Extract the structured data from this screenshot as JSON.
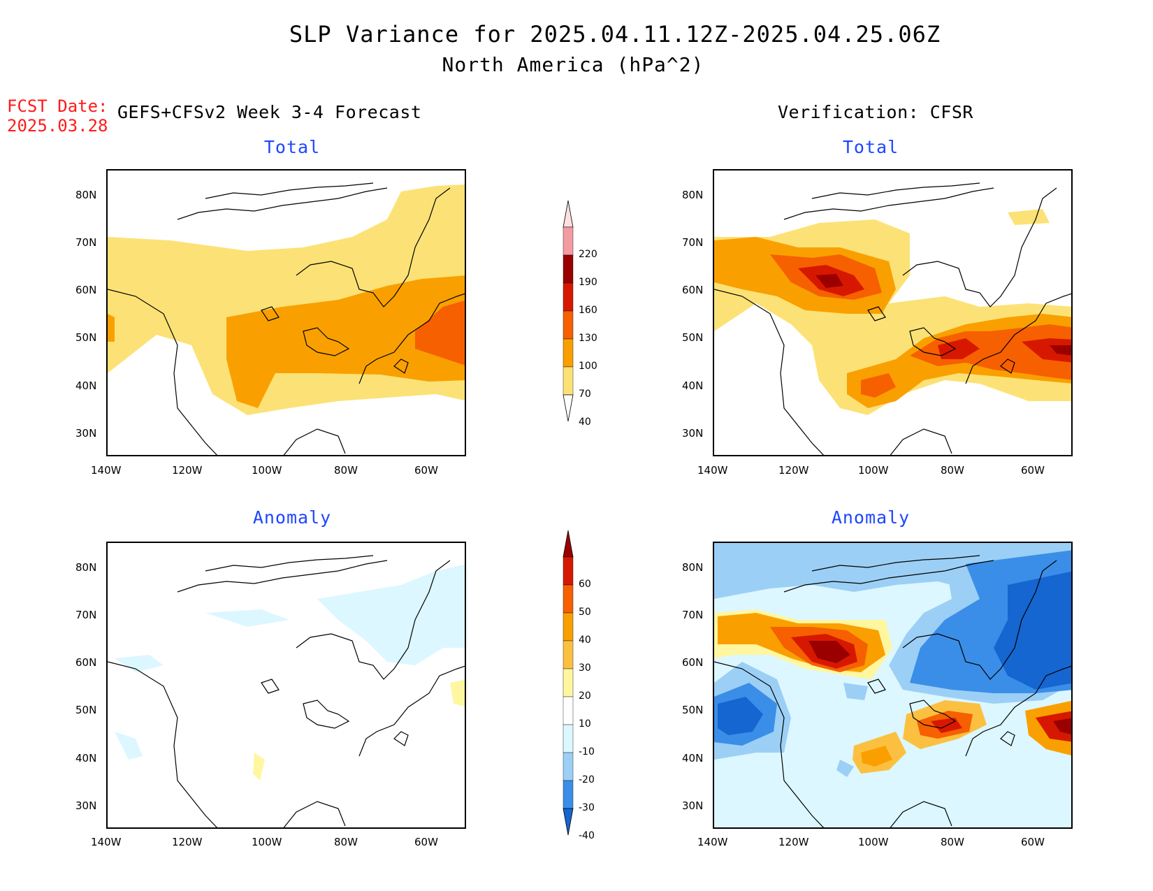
{
  "header": {
    "title": "SLP Variance for 2025.04.11.12Z-2025.04.25.06Z",
    "subtitle": "North America (hPa^2)",
    "fcst_date_label": "FCST Date:",
    "fcst_date_value": "2025.03.28",
    "left_column_title": "GEFS+CFSv2 Week 3-4 Forecast",
    "right_column_title": "Verification: CFSR"
  },
  "panels": {
    "forecast_total": {
      "title": "Total"
    },
    "verif_total": {
      "title": "Total"
    },
    "forecast_anomaly": {
      "title": "Anomaly"
    },
    "verif_anomaly": {
      "title": "Anomaly"
    }
  },
  "axes": {
    "lat_labels": [
      "80N",
      "70N",
      "60N",
      "50N",
      "40N",
      "30N"
    ],
    "lon_labels": [
      "140W",
      "120W",
      "100W",
      "80W",
      "60W"
    ]
  },
  "colorbars": {
    "total": {
      "labels": [
        "220",
        "190",
        "160",
        "130",
        "100",
        "70",
        "40"
      ],
      "colors": [
        "#fde0df",
        "#f29ba0",
        "#9b0000",
        "#d71800",
        "#f66000",
        "#f9a000",
        "#fce276"
      ]
    },
    "anomaly": {
      "labels": [
        "60",
        "50",
        "40",
        "30",
        "20",
        "10",
        "-10",
        "-20",
        "-30",
        "-40"
      ],
      "colors": [
        "#9b0000",
        "#d71800",
        "#f66000",
        "#f9a000",
        "#fcc040",
        "#fff6a0",
        "#ffffff",
        "#dcf7ff",
        "#9ccff5",
        "#3a8ee8",
        "#1566d0"
      ]
    }
  }
}
